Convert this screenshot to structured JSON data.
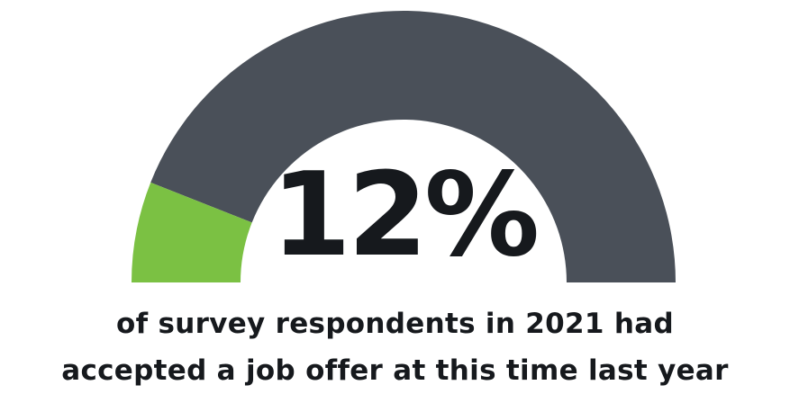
{
  "chart_data": {
    "type": "gauge",
    "value": 12,
    "max": 100,
    "value_label": "12%",
    "caption_lines": [
      "of survey respondents in 2021 had",
      "accepted a job offer at this time last year"
    ],
    "colors": {
      "filled": "#7bc143",
      "remaining": "#4a5059",
      "value_text": "#16191d"
    }
  }
}
